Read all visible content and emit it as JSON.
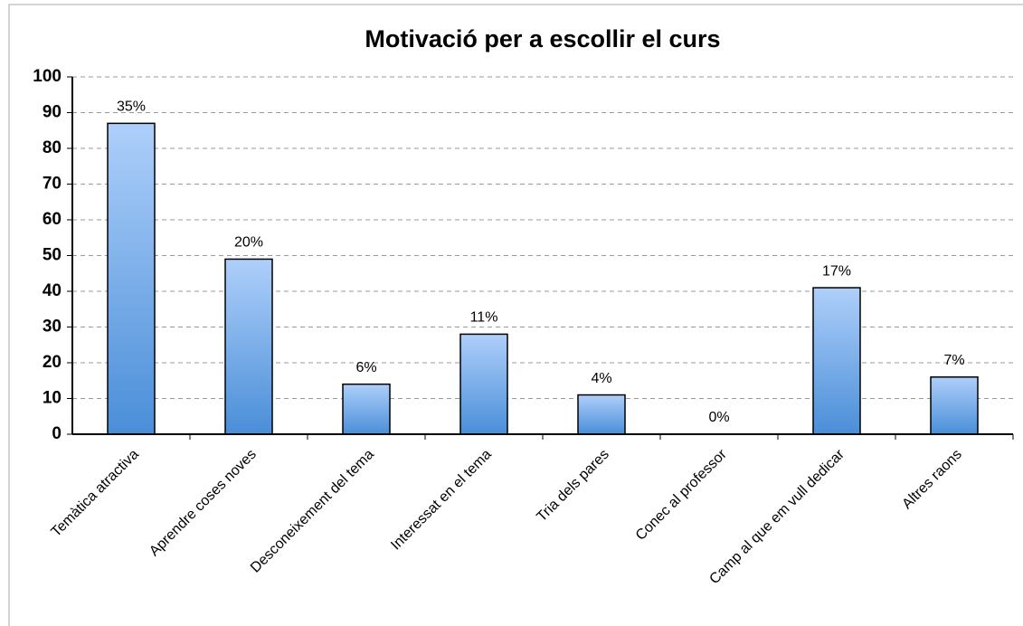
{
  "chart_data": {
    "type": "bar",
    "title": "Motivació per a escollir el curs",
    "categories": [
      "Temàtica atractiva",
      "Aprendre coses noves",
      "Desconeixement del tema",
      "Interessat en el tema",
      "Tria dels pares",
      "Conec al professor",
      "Camp al que em vull dedicar",
      "Altres raons"
    ],
    "values": [
      87,
      49,
      14,
      28,
      11,
      0,
      41,
      16
    ],
    "percent_labels": [
      "35%",
      "20%",
      "6%",
      "11%",
      "4%",
      "0%",
      "17%",
      "7%"
    ],
    "color": "#6fa8e8",
    "ylim": [
      0,
      100
    ],
    "yticks": [
      0,
      10,
      20,
      30,
      40,
      50,
      60,
      70,
      80,
      90,
      100
    ],
    "grid": true
  }
}
